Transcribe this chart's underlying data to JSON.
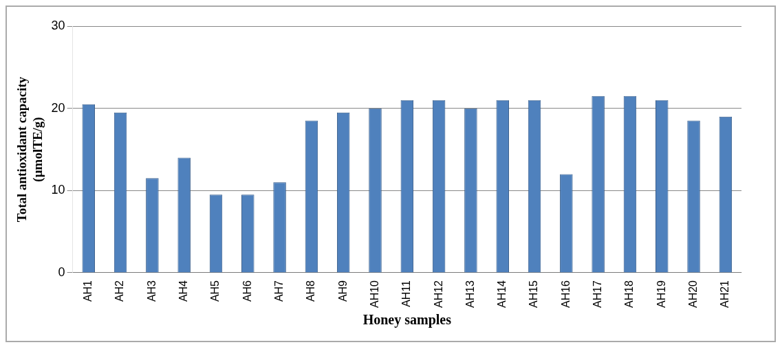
{
  "chart_data": {
    "type": "bar",
    "xlabel": "Honey samples",
    "ylabel": "Total antioxidant capacity (µmolTE/g)",
    "categories": [
      "AH1",
      "AH2",
      "AH3",
      "AH4",
      "AH5",
      "AH6",
      "AH7",
      "AH8",
      "AH9",
      "AH10",
      "AH11",
      "AH12",
      "AH13",
      "AH14",
      "AH15",
      "AH16",
      "AH17",
      "AH18",
      "AH19",
      "AH20",
      "AH21"
    ],
    "values": [
      20.5,
      19.5,
      11.5,
      14,
      9.5,
      9.5,
      11,
      18.5,
      19.5,
      20,
      21,
      21,
      20,
      21,
      21,
      12,
      21.5,
      21.5,
      21,
      18.5,
      19
    ],
    "color": "#4f81bd",
    "ylim": [
      0,
      30
    ],
    "yticks": [
      0,
      10,
      20,
      30
    ],
    "grid": "y"
  }
}
